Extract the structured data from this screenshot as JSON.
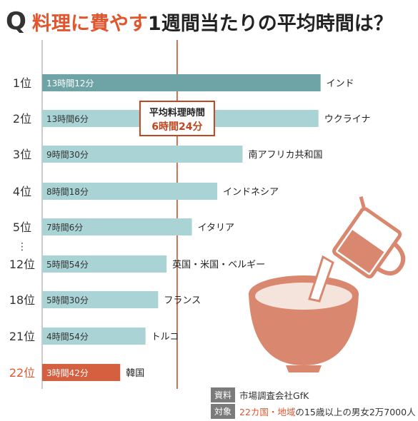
{
  "title": {
    "q_mark": "Q",
    "highlight": "料理に費やす",
    "rest": "1週間当たりの平均時間は？"
  },
  "colors": {
    "normal_bar": "#a9d3d5",
    "top_bar": "#6fa4a7",
    "highlight_bar": "#d5603f",
    "average_line": "#c0461f",
    "rank_highlight": "#e0572f"
  },
  "chart_data": {
    "type": "bar",
    "orientation": "horizontal",
    "unit": "minutes",
    "xlim": [
      0,
      780
    ],
    "average": {
      "label": "平均料理時間",
      "value_label": "6時間24分",
      "minutes": 384
    },
    "bars": [
      {
        "rank": "1位",
        "country": "インド",
        "value_label": "13時間12分",
        "minutes": 792,
        "style": "top"
      },
      {
        "rank": "2位",
        "country": "ウクライナ",
        "value_label": "13時間6分",
        "minutes": 786,
        "style": "normal"
      },
      {
        "rank": "3位",
        "country": "南アフリカ共和国",
        "value_label": "9時間30分",
        "minutes": 570,
        "style": "normal"
      },
      {
        "rank": "4位",
        "country": "インドネシア",
        "value_label": "8時間18分",
        "minutes": 498,
        "style": "normal"
      },
      {
        "rank": "5位",
        "country": "イタリア",
        "value_label": "7時間6分",
        "minutes": 426,
        "style": "normal"
      },
      {
        "rank": "12位",
        "country": "英国・米国・ベルギー",
        "value_label": "5時間54分",
        "minutes": 354,
        "style": "normal"
      },
      {
        "rank": "18位",
        "country": "フランス",
        "value_label": "5時間30分",
        "minutes": 330,
        "style": "normal"
      },
      {
        "rank": "21位",
        "country": "トルコ",
        "value_label": "4時間54分",
        "minutes": 294,
        "style": "normal"
      },
      {
        "rank": "22位",
        "country": "韓国",
        "value_label": "3時間42分",
        "minutes": 222,
        "style": "highlight"
      }
    ],
    "gap_marker": "⋮"
  },
  "source": {
    "label1": "資料",
    "text1": "市場調査会社GfK",
    "label2": "対象",
    "text2_red": "22カ国・地域",
    "text2_rest": "の15歳以上の男女2万7000人"
  },
  "illustration": "pouring-cup-into-bowl"
}
